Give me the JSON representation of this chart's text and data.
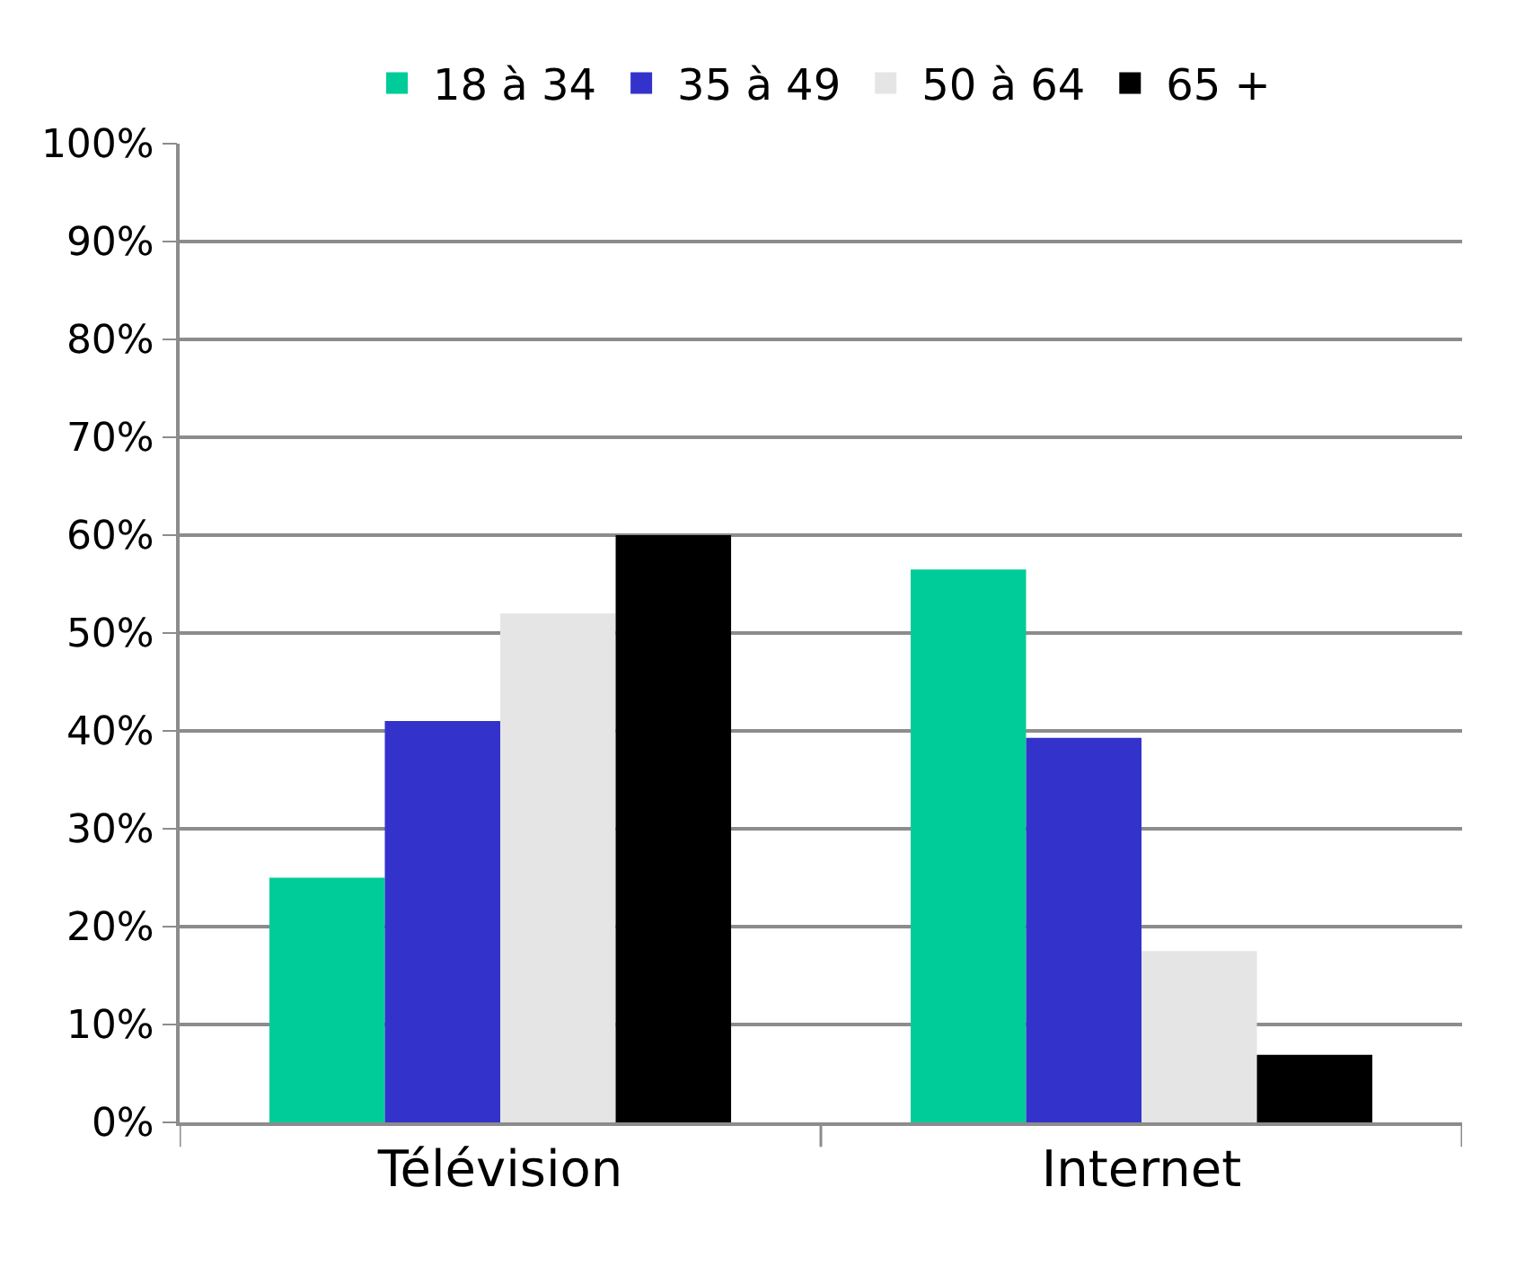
{
  "chart_data": {
    "type": "bar",
    "categories": [
      "Télévision",
      "Internet"
    ],
    "series": [
      {
        "name": "18 à 34",
        "color": "#00cc99",
        "values": [
          25,
          56.5
        ]
      },
      {
        "name": "35 à 49",
        "color": "#3333cc",
        "values": [
          41,
          39.3
        ]
      },
      {
        "name": "50 à 64",
        "color": "#e5e5e5",
        "values": [
          52,
          17.5
        ]
      },
      {
        "name": "65 +",
        "color": "#000000",
        "values": [
          60,
          6.9
        ]
      }
    ],
    "ylim": [
      0,
      100
    ],
    "yticks": [
      {
        "value": 0,
        "label": "0%"
      },
      {
        "value": 10,
        "label": "10%"
      },
      {
        "value": 20,
        "label": "20%"
      },
      {
        "value": 30,
        "label": "30%"
      },
      {
        "value": 40,
        "label": "40%"
      },
      {
        "value": 50,
        "label": "50%"
      },
      {
        "value": 60,
        "label": "60%"
      },
      {
        "value": 70,
        "label": "70%"
      },
      {
        "value": 80,
        "label": "80%"
      },
      {
        "value": 90,
        "label": "90%"
      },
      {
        "value": 100,
        "label": "100%"
      }
    ],
    "grid": "y",
    "legend": "top"
  }
}
